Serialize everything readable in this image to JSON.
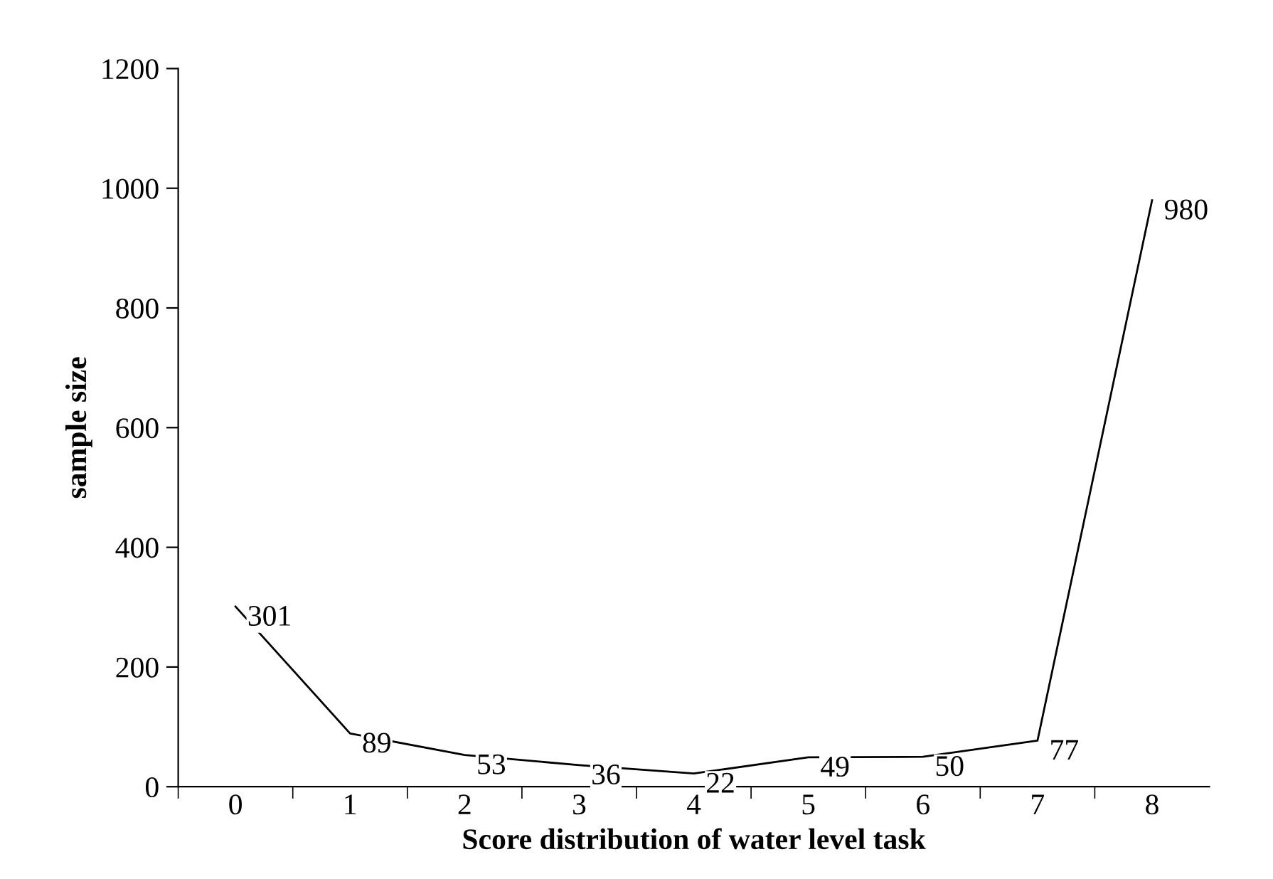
{
  "chart_data": {
    "type": "line",
    "xlabel": "Score distribution of water level task",
    "ylabel": "sample size",
    "categories": [
      "0",
      "1",
      "2",
      "3",
      "4",
      "5",
      "6",
      "7",
      "8"
    ],
    "series": [
      {
        "color": "#000000",
        "values": [
          301,
          89,
          53,
          36,
          22,
          49,
          50,
          77,
          980
        ]
      }
    ],
    "ylim": [
      0,
      1200
    ],
    "yticks": [
      0,
      200,
      400,
      600,
      800,
      1000,
      1200
    ],
    "grid": false,
    "legend": false,
    "data_labels": true,
    "marker": "none",
    "line_style": "solid"
  }
}
